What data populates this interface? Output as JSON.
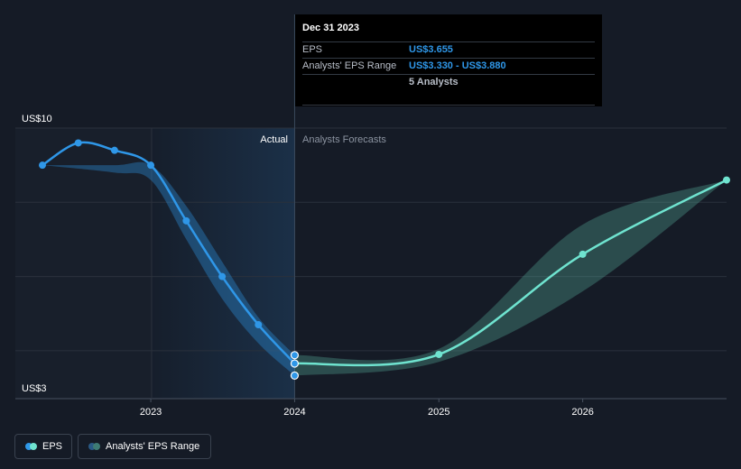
{
  "chart_data": {
    "type": "line",
    "y_unit_prefix": "US$",
    "ylim": [
      3,
      10
    ],
    "y_tick_labels": [
      "US$10",
      "US$3"
    ],
    "x_tick_labels": [
      "2023",
      "2024",
      "2025",
      "2026"
    ],
    "xlim": [
      "2022-03-31",
      "2026-12-31"
    ],
    "divider_date": "2023-12-31",
    "region_labels": {
      "actual": "Actual",
      "forecast": "Analysts Forecasts"
    },
    "grid": true,
    "series": [
      {
        "name": "EPS",
        "color": "#2f97e8",
        "dates": [
          "2022-03-31",
          "2022-06-30",
          "2022-09-30",
          "2022-12-31",
          "2023-03-31",
          "2023-06-30",
          "2023-09-30",
          "2023-12-31"
        ],
        "values": [
          9.0,
          9.6,
          9.4,
          9.0,
          7.5,
          6.0,
          4.7,
          3.655
        ]
      },
      {
        "name": "EPS",
        "color": "#6fe3cf",
        "dates": [
          "2023-12-31",
          "2024-12-31",
          "2025-12-31",
          "2026-12-31"
        ],
        "values": [
          3.655,
          3.9,
          6.6,
          8.6
        ]
      }
    ],
    "range": {
      "name": "Analysts' EPS Range",
      "actual_color": "#2f97e8",
      "forecast_color": "#5bb5a2",
      "dates": [
        "2022-03-31",
        "2022-09-30",
        "2022-12-31",
        "2023-03-31",
        "2023-06-30",
        "2023-09-30",
        "2023-12-31",
        "2024-12-31",
        "2025-12-31",
        "2026-12-31"
      ],
      "low": [
        9.0,
        8.8,
        8.6,
        7.0,
        5.4,
        4.2,
        3.33,
        3.7,
        5.6,
        8.6
      ],
      "high": [
        9.0,
        9.0,
        9.0,
        7.9,
        6.4,
        4.9,
        3.88,
        4.05,
        7.4,
        8.6
      ]
    },
    "highlight_markers": {
      "date": "2023-12-31",
      "values": [
        3.88,
        3.655,
        3.33
      ]
    }
  },
  "tooltip": {
    "date": "Dec 31 2023",
    "eps_label": "EPS",
    "eps_value": "US$3.655",
    "range_label": "Analysts' EPS Range",
    "range_value": "US$3.330 - US$3.880",
    "analysts": "5 Analysts"
  },
  "legend": {
    "eps_label": "EPS",
    "range_label": "Analysts' EPS Range"
  },
  "colors": {
    "background": "#151b26",
    "actual_shade": "#1b3048",
    "grid": "#2a313c",
    "axis": "#485160"
  }
}
